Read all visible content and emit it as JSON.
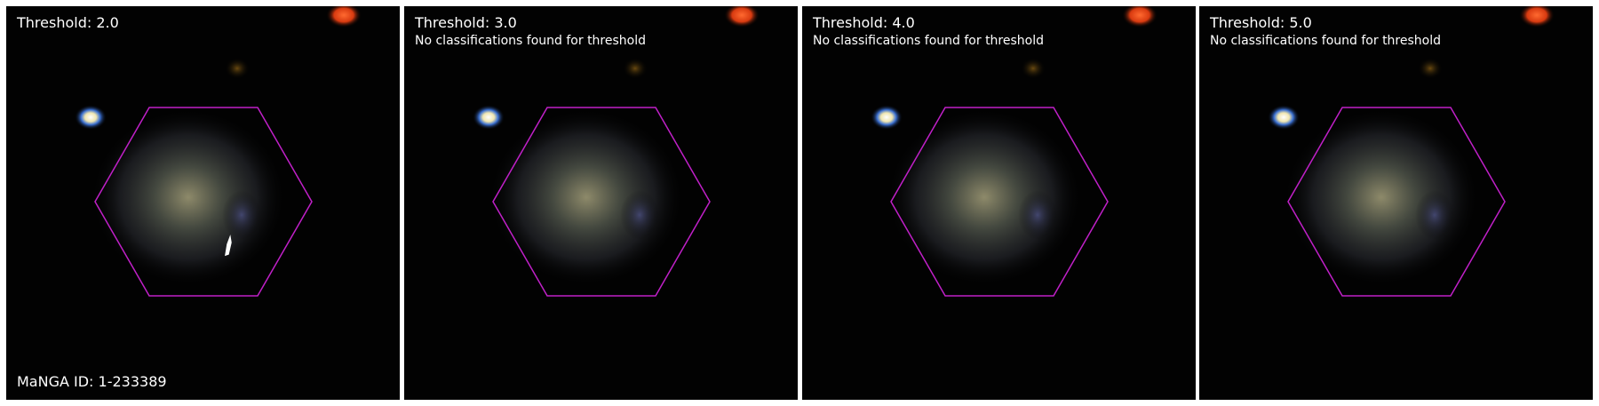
{
  "figure": {
    "manga_id_label": "MaNGA ID: 1-233389",
    "hexagon_color": "#c020c8",
    "panels": [
      {
        "threshold_label": "Threshold: 2.0",
        "no_class_label": "",
        "has_region": true
      },
      {
        "threshold_label": "Threshold: 3.0",
        "no_class_label": "No classifications found for threshold",
        "has_region": false
      },
      {
        "threshold_label": "Threshold: 4.0",
        "no_class_label": "No classifications found for threshold",
        "has_region": false
      },
      {
        "threshold_label": "Threshold: 5.0",
        "no_class_label": "No classifications found for threshold",
        "has_region": false
      }
    ]
  }
}
